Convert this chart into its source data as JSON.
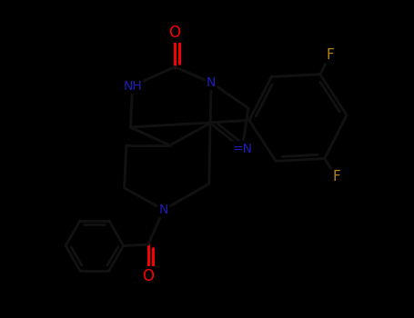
{
  "background_color": "#000000",
  "atom_colors": {
    "O": "#ff0000",
    "N": "#1e1eb4",
    "F": "#b8860b"
  },
  "lw": 2.1,
  "fig_w": 4.55,
  "fig_h": 3.5,
  "dpi": 100
}
